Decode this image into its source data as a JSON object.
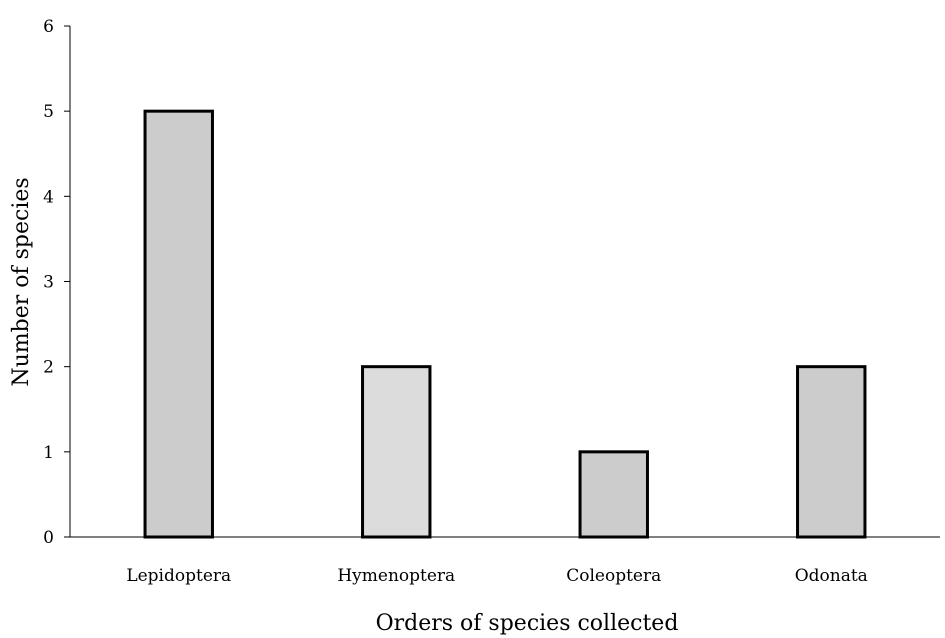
{
  "chart_data": {
    "type": "bar",
    "categories": [
      "Lepidoptera",
      "Hymenoptera",
      "Coleoptera",
      "Odonata"
    ],
    "values": [
      5,
      2,
      1,
      2
    ],
    "bar_colors": [
      "#cccccc",
      "#dcdcdc",
      "#cccccc",
      "#cccccc"
    ],
    "xlabel": "Orders of species collected",
    "ylabel": "Number of species",
    "ylim": [
      0,
      6
    ],
    "yticks": [
      0,
      1,
      2,
      3,
      4,
      5,
      6
    ],
    "grid": false,
    "legend": "none"
  }
}
